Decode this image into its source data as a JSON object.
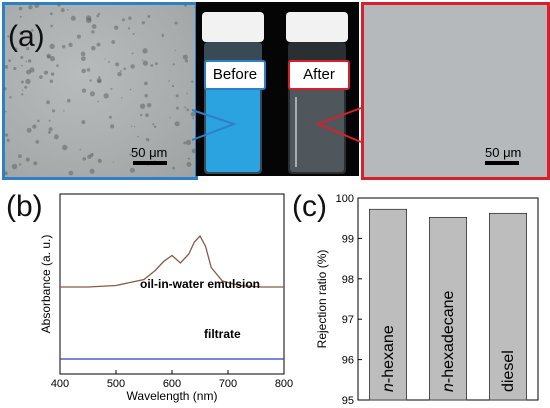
{
  "panel_a": {
    "label": "(a)",
    "scale_left": "50 μm",
    "scale_right": "50 μm",
    "before_label": "Before",
    "after_label": "After",
    "colors": {
      "left_border": "#2f7fc8",
      "right_border": "#d8202a",
      "before_liquid": "#2aa3e0"
    }
  },
  "panel_b": {
    "label": "(b)",
    "chart_data": {
      "type": "line",
      "xlabel": "Wavelength (nm)",
      "ylabel": "Absorbance (a. u.)",
      "xlim": [
        400,
        800
      ],
      "xticks": [
        400,
        500,
        600,
        700,
        800
      ],
      "series": [
        {
          "name": "oil-in-water emulsion",
          "color": "#8a5a44",
          "x": [
            400,
            450,
            500,
            550,
            570,
            585,
            600,
            615,
            630,
            640,
            650,
            660,
            670,
            690,
            720,
            760,
            800
          ],
          "y": [
            0.5,
            0.5,
            0.51,
            0.55,
            0.61,
            0.67,
            0.71,
            0.66,
            0.72,
            0.8,
            0.84,
            0.77,
            0.63,
            0.54,
            0.51,
            0.5,
            0.5
          ]
        },
        {
          "name": "filtrate",
          "color": "#2b3fc8",
          "x": [
            400,
            500,
            600,
            700,
            800
          ],
          "y": [
            0.02,
            0.02,
            0.02,
            0.02,
            0.02
          ]
        }
      ]
    }
  },
  "panel_c": {
    "label": "(c)",
    "chart_data": {
      "type": "bar",
      "ylabel": "Rejection ratio (%)",
      "ylim": [
        95,
        100
      ],
      "yticks": [
        95,
        96,
        97,
        98,
        99,
        100
      ],
      "categories": [
        "n-hexane",
        "n-hexadecane",
        "diesel"
      ],
      "values": [
        99.72,
        99.52,
        99.62
      ],
      "bar_color": "#bdbdbd"
    }
  }
}
